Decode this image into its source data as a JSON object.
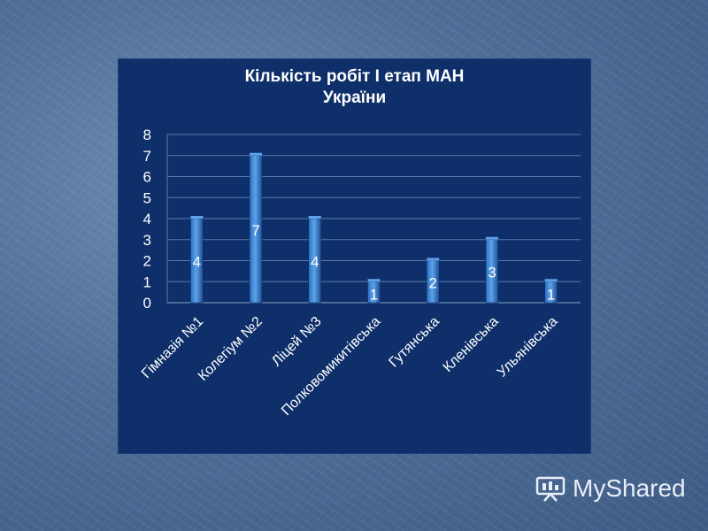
{
  "chart_data": {
    "type": "bar",
    "title_lines": [
      "Кількість робіт І етап МАН",
      "України"
    ],
    "categories": [
      "Гімназія №1",
      "Колегіум №2",
      "Ліцей №3",
      "Полковомикитівська",
      "Гутянська",
      "Кленівська",
      "Ульянівська"
    ],
    "values": [
      4,
      7,
      4,
      1,
      2,
      3,
      1
    ],
    "data_labels": [
      "4",
      "7",
      "4",
      "1",
      "2",
      "3",
      "1"
    ],
    "y_ticks": [
      "0",
      "1",
      "2",
      "3",
      "4",
      "5",
      "6",
      "7",
      "8"
    ],
    "ylim": [
      0,
      8
    ],
    "grid": true,
    "legend": "none",
    "colors": {
      "bar": "#2a6fc0",
      "bar_light": "#5ea3e8",
      "panel": "#0e2f6a",
      "grid": "#5c7aa8",
      "text": "#ffffff"
    }
  },
  "watermark": {
    "text": "MyShared"
  }
}
